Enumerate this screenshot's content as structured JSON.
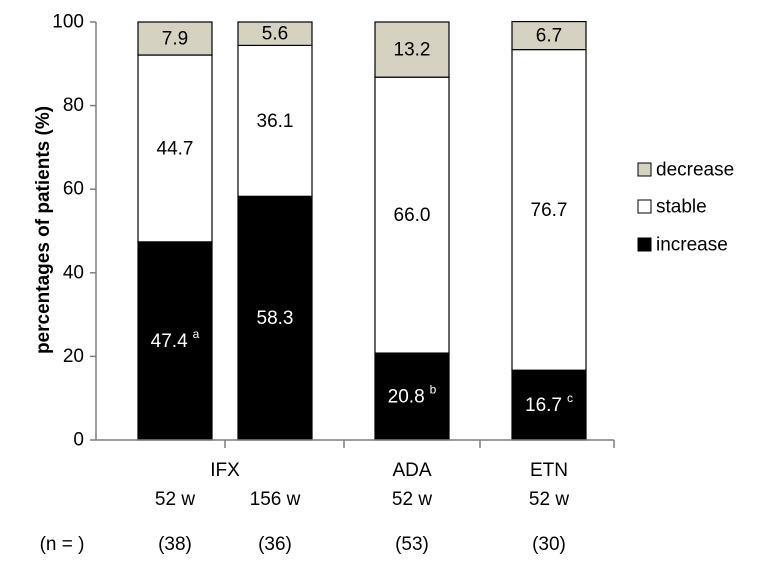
{
  "chart_data": {
    "type": "bar",
    "stacked": true,
    "ylabel": "percentages of patients (%)",
    "ylim": [
      0,
      100
    ],
    "yticks": [
      0,
      20,
      40,
      60,
      80,
      100
    ],
    "groups": [
      {
        "label": "IFX",
        "n_label": "(n = )"
      },
      {
        "label": "ADA"
      },
      {
        "label": "ETN"
      }
    ],
    "bars": [
      {
        "group": "IFX",
        "sublabel": "52 w",
        "n": "(38)",
        "segments": {
          "increase": 47.4,
          "stable": 44.7,
          "decrease": 7.9
        },
        "labels": {
          "increase": "47.4",
          "stable": "44.7",
          "decrease": "7.9"
        },
        "superscript": "a"
      },
      {
        "group": "IFX",
        "sublabel": "156 w",
        "n": "(36)",
        "segments": {
          "increase": 58.3,
          "stable": 36.1,
          "decrease": 5.6
        },
        "labels": {
          "increase": "58.3",
          "stable": "36.1",
          "decrease": "5.6"
        },
        "superscript": ""
      },
      {
        "group": "ADA",
        "sublabel": "52 w",
        "n": "(53)",
        "segments": {
          "increase": 20.8,
          "stable": 66.0,
          "decrease": 13.2
        },
        "labels": {
          "increase": "20.8",
          "stable": "66.0",
          "decrease": "13.2"
        },
        "superscript": "b"
      },
      {
        "group": "ETN",
        "sublabel": "52 w",
        "n": "(30)",
        "segments": {
          "increase": 16.7,
          "stable": 76.7,
          "decrease": 6.7
        },
        "labels": {
          "increase": "16.7",
          "stable": "76.7",
          "decrease": "6.7"
        },
        "superscript": "c"
      }
    ],
    "series": [
      {
        "name": "decrease",
        "color": "#d6d2c2"
      },
      {
        "name": "stable",
        "color": "#ffffff"
      },
      {
        "name": "increase",
        "color": "#000000"
      }
    ],
    "legend_position": "right",
    "grid": false
  }
}
